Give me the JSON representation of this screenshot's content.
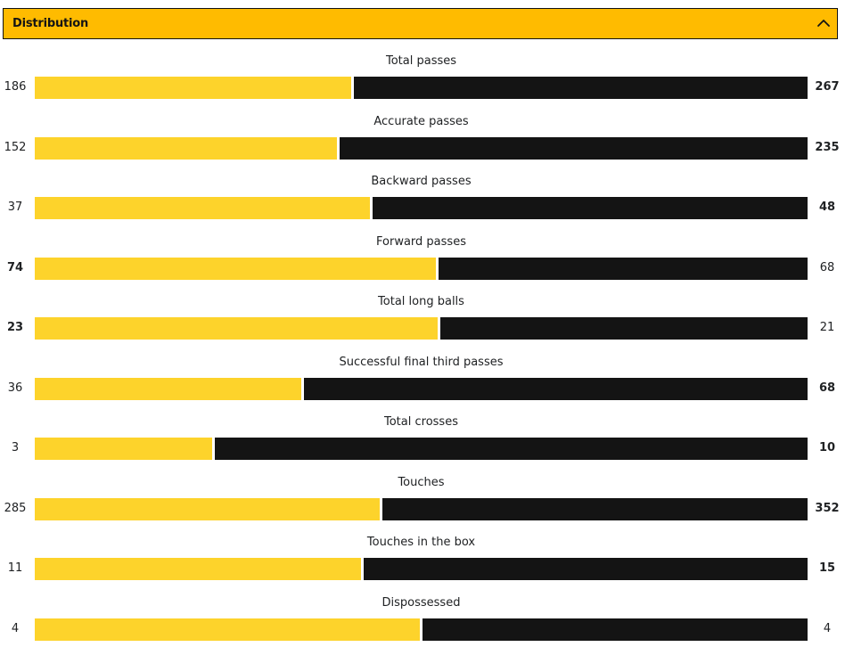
{
  "section": {
    "title": "Distribution",
    "collapse_icon": "chevron-up-icon",
    "colors": {
      "header_bg": "#ffbb00",
      "home": "#fdd32b",
      "away": "#141414"
    }
  },
  "stats": [
    {
      "label": "Total passes",
      "home": "186",
      "away": "267",
      "home_value": 186,
      "away_value": 267
    },
    {
      "label": "Accurate passes",
      "home": "152",
      "away": "235",
      "home_value": 152,
      "away_value": 235
    },
    {
      "label": "Backward passes",
      "home": "37",
      "away": "48",
      "home_value": 37,
      "away_value": 48
    },
    {
      "label": "Forward passes",
      "home": "74",
      "away": "68",
      "home_value": 74,
      "away_value": 68
    },
    {
      "label": "Total long balls",
      "home": "23",
      "away": "21",
      "home_value": 23,
      "away_value": 21
    },
    {
      "label": "Successful final third passes",
      "home": "36",
      "away": "68",
      "home_value": 36,
      "away_value": 68
    },
    {
      "label": "Total crosses",
      "home": "3",
      "away": "10",
      "home_value": 3,
      "away_value": 10
    },
    {
      "label": "Touches",
      "home": "285",
      "away": "352",
      "home_value": 285,
      "away_value": 352
    },
    {
      "label": "Touches in the box",
      "home": "11",
      "away": "15",
      "home_value": 11,
      "away_value": 15
    },
    {
      "label": "Dispossessed",
      "home": "4",
      "away": "4",
      "home_value": 4,
      "away_value": 4
    }
  ]
}
